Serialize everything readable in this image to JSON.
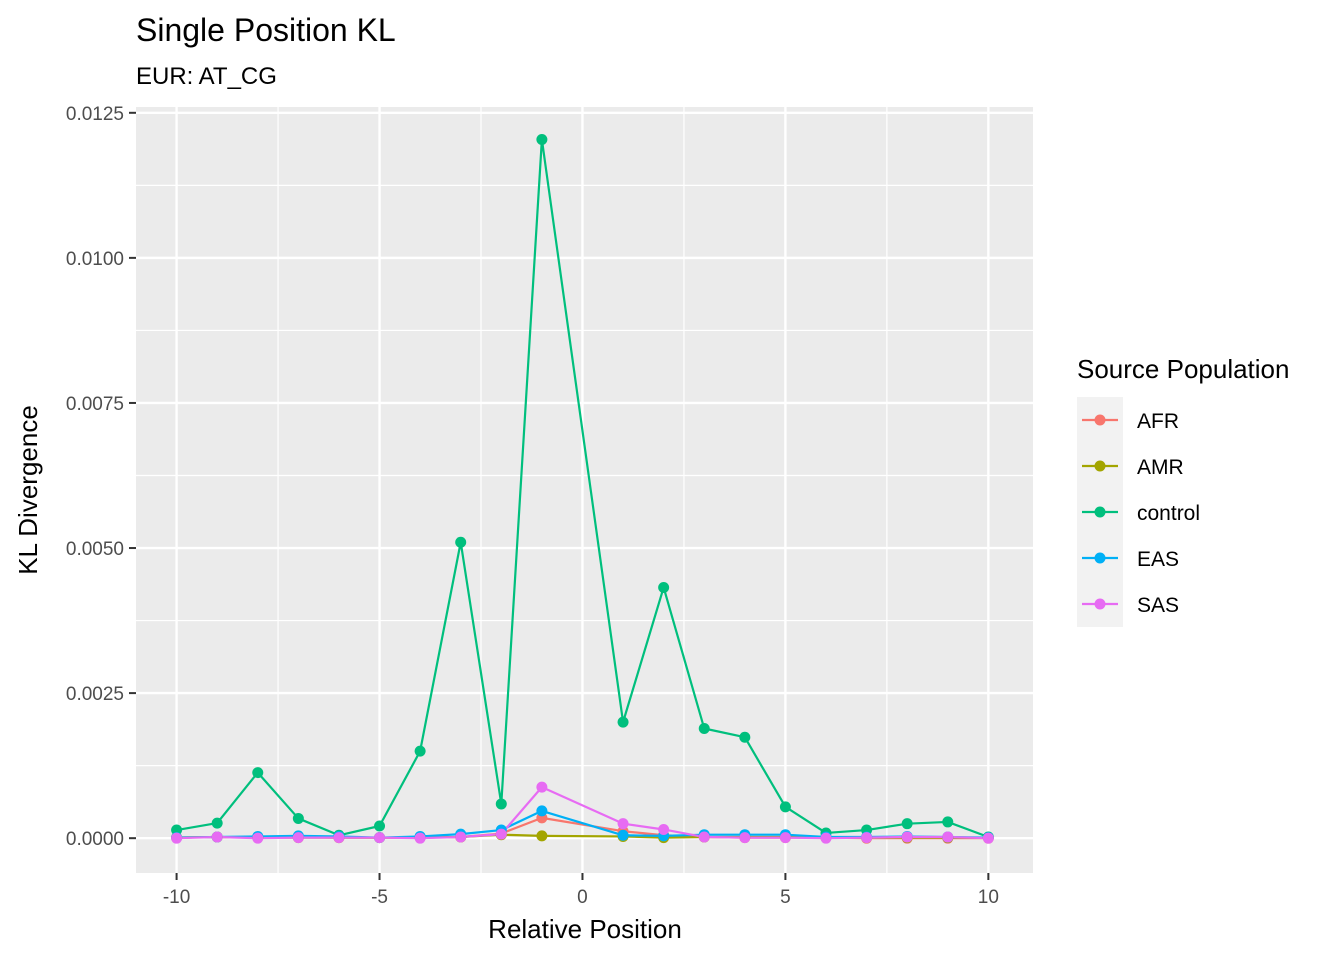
{
  "chart_data": {
    "type": "line",
    "title": "Single Position KL",
    "subtitle": "EUR: AT_CG",
    "xlabel": "Relative Position",
    "ylabel": "KL Divergence",
    "xlim": [
      -11,
      11.1
    ],
    "ylim": [
      -0.0006,
      0.0126
    ],
    "x_ticks": [
      -10,
      -5,
      0,
      5,
      10
    ],
    "x_tick_labels": [
      "-10",
      "-5",
      "0",
      "5",
      "10"
    ],
    "y_ticks": [
      0,
      0.0025,
      0.005,
      0.0075,
      0.01,
      0.0125
    ],
    "y_tick_labels": [
      "0.0000",
      "0.0025",
      "0.0050",
      "0.0075",
      "0.0100",
      "0.0125"
    ],
    "grid": true,
    "legend": {
      "title": "Source Population",
      "position": "right"
    },
    "x": [
      -10,
      -9,
      -8,
      -7,
      -6,
      -5,
      -4,
      -3,
      -2,
      -1,
      1,
      2,
      3,
      4,
      5,
      6,
      7,
      8,
      9,
      10
    ],
    "series": [
      {
        "name": "AFR",
        "color": "#F8766D",
        "values": [
          1e-05,
          2e-05,
          1e-05,
          2e-05,
          1e-05,
          1e-05,
          1e-05,
          2e-05,
          8e-05,
          0.00035,
          0.00012,
          5e-05,
          2e-05,
          1e-05,
          1e-05,
          1e-05,
          0.0,
          0.0,
          0.0,
          0.0
        ]
      },
      {
        "name": "AMR",
        "color": "#A3A500",
        "values": [
          1e-05,
          2e-05,
          1e-05,
          1e-05,
          1e-05,
          1e-05,
          1e-05,
          2e-05,
          6e-05,
          4e-05,
          3e-05,
          1e-05,
          2e-05,
          2e-05,
          2e-05,
          1e-05,
          1e-05,
          1e-05,
          1e-05,
          1e-05
        ]
      },
      {
        "name": "control",
        "color": "#00BF7D",
        "values": [
          0.00014,
          0.00026,
          0.00113,
          0.00034,
          5e-05,
          0.00021,
          0.0015,
          0.0051,
          0.00059,
          0.01204,
          0.002,
          0.00432,
          0.00189,
          0.00174,
          0.00054,
          9e-05,
          0.00014,
          0.00025,
          0.00028,
          2e-05
        ]
      },
      {
        "name": "EAS",
        "color": "#00B0F6",
        "values": [
          1e-05,
          2e-05,
          3e-05,
          4e-05,
          3e-05,
          1e-05,
          3e-05,
          7e-05,
          0.00014,
          0.00047,
          5e-05,
          4e-05,
          6e-05,
          6e-05,
          6e-05,
          2e-05,
          2e-05,
          3e-05,
          2e-05,
          1e-05
        ]
      },
      {
        "name": "SAS",
        "color": "#E76BF3",
        "values": [
          0.0,
          2e-05,
          0.0,
          1e-05,
          1e-05,
          1e-05,
          0.0,
          2e-05,
          7e-05,
          0.00088,
          0.00025,
          0.00015,
          2e-05,
          1e-05,
          1e-05,
          0.0,
          1e-05,
          2e-05,
          2e-05,
          0.0
        ]
      }
    ]
  }
}
